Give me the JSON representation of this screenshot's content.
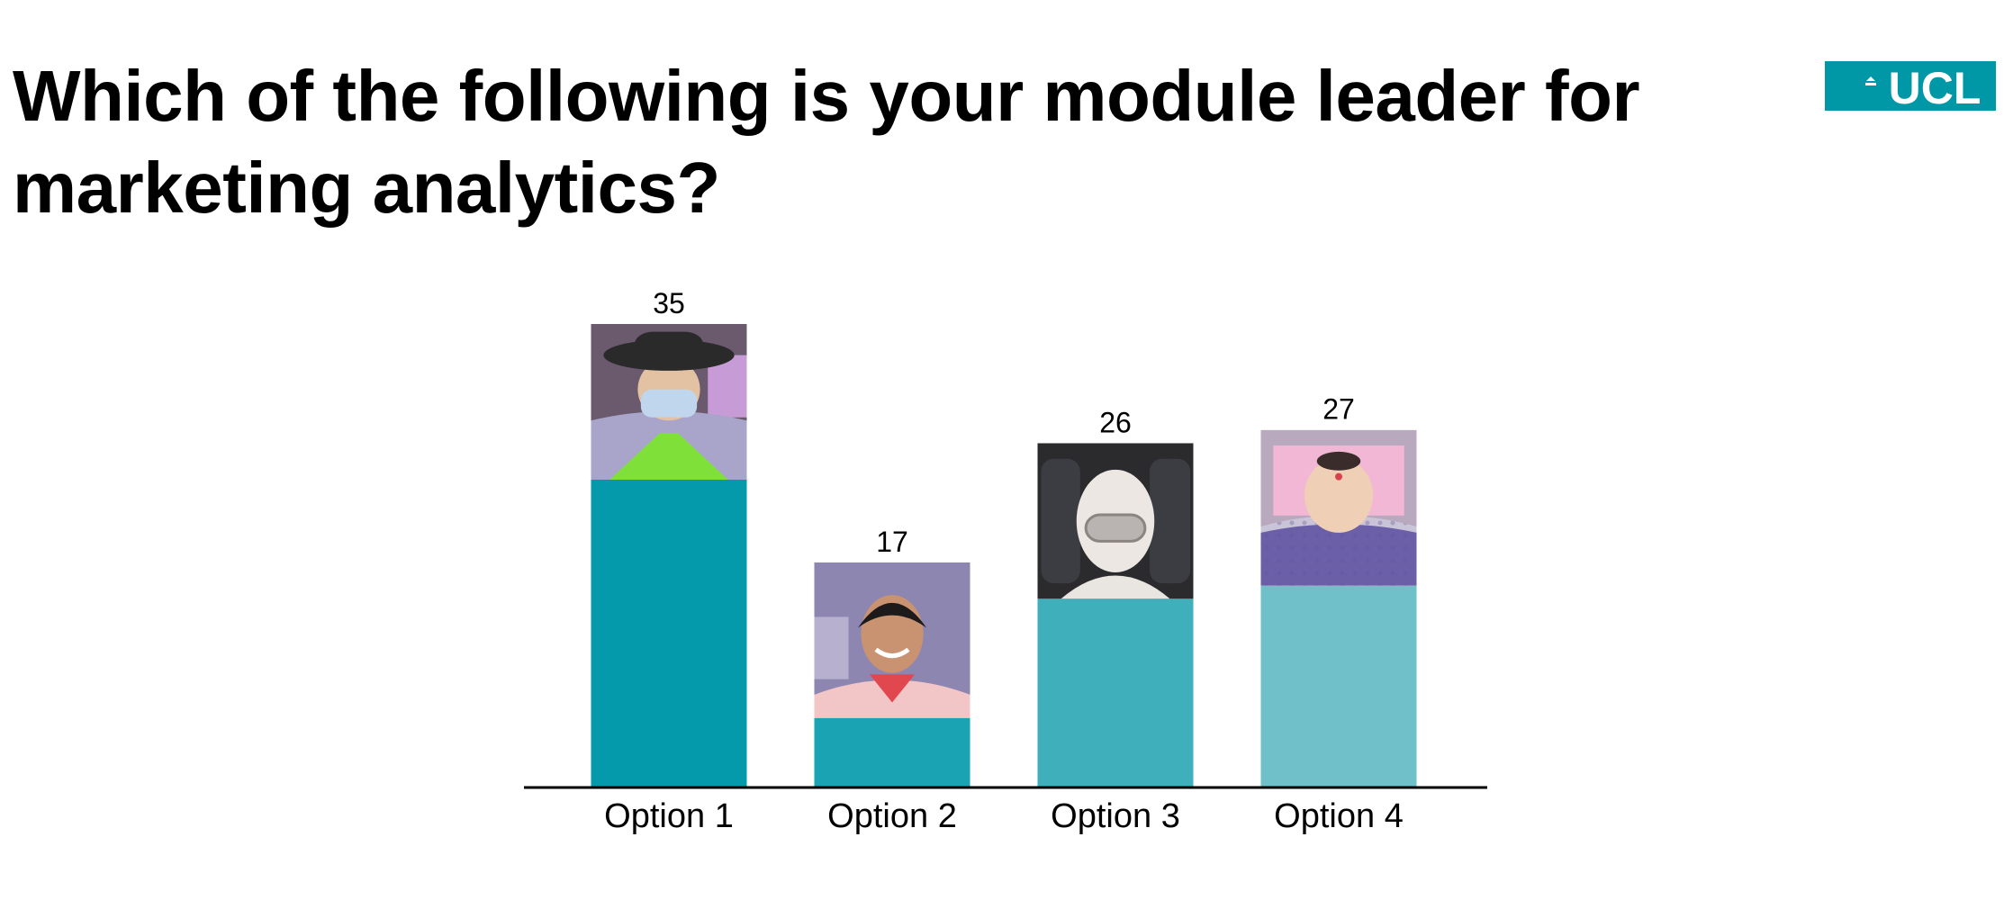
{
  "slide": {
    "title": "Which of the following is your module leader for marketing analytics?"
  },
  "logo": {
    "text": "UCL",
    "background": "#0097a7",
    "foreground": "#ffffff"
  },
  "chart_data": {
    "type": "bar",
    "categories": [
      "Option 1",
      "Option 2",
      "Option 3",
      "Option 4"
    ],
    "values": [
      35,
      17,
      26,
      27
    ],
    "data_labels": [
      "35",
      "17",
      "26",
      "27"
    ],
    "title": "",
    "xlabel": "",
    "ylabel": "",
    "ylim": [
      0,
      35
    ],
    "grid": false,
    "legend": "none",
    "bar_colors": [
      "#049aab",
      "#1aa3b3",
      "#40afbc",
      "#6fc0c9"
    ],
    "axis_color": "#000000"
  },
  "bar_images": [
    {
      "subject": "person in graduation hat with face mask"
    },
    {
      "subject": "smiling man in pink shirt"
    },
    {
      "subject": "person in white protective suit and goggles"
    },
    {
      "subject": "baby in purple knit sweater"
    }
  ]
}
